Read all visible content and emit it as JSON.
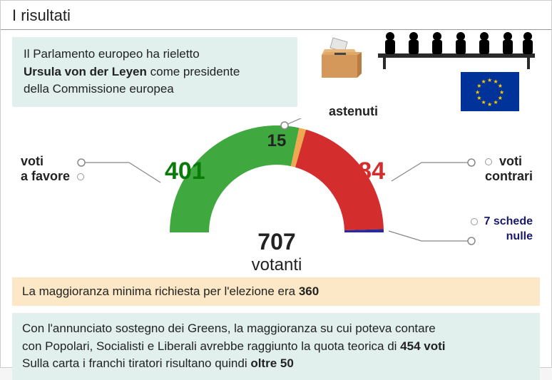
{
  "title": "I risultati",
  "intro": {
    "line1": "Il Parlamento europeo ha rieletto",
    "bold": "Ursula von der Leyen",
    "line2_after": " come presidente",
    "line3": "della Commissione europea"
  },
  "icons": {
    "ballot_box_fill": "#d4985a",
    "ballot_box_shadow": "#b87d42",
    "ballot_slot": "#555",
    "ballot_paper": "#e6e6e6",
    "silhouette_fill": "#000000",
    "table_fill": "#2a2a2a"
  },
  "eu_flag": {
    "bg": "#003399",
    "star_color": "#ffcc00",
    "star_count": 12
  },
  "chart": {
    "type": "half-donut",
    "total_label_number": "707",
    "total_label_word": "votanti",
    "inner_radius": 95,
    "outer_radius": 150,
    "segments": [
      {
        "key": "favor",
        "label_line1": "voti",
        "label_line2": "a favore",
        "value": 401,
        "value_text": "401",
        "color": "#3fa83f"
      },
      {
        "key": "abstain",
        "label_line1": "astenuti",
        "label_line2": "",
        "value": 15,
        "value_text": "15",
        "color": "#f0a850"
      },
      {
        "key": "against",
        "label_line1": "voti",
        "label_line2": "contrari",
        "value": 284,
        "value_text": "284",
        "color": "#d32d2d"
      },
      {
        "key": "null",
        "label_line1": "7 schede",
        "label_line2": "nulle",
        "value": 7,
        "value_text": "7",
        "color": "#2a2a9a"
      }
    ],
    "center_text_color": "#222222",
    "value_font_size_main": 34,
    "value_font_size_abstain": 24,
    "label_font_size": 18,
    "background": "#ffffff"
  },
  "majority": {
    "prefix": "La maggioranza minima richiesta per l'elezione era ",
    "value": "360",
    "bg": "#fce8c6"
  },
  "greens": {
    "line1_prefix": "Con l'annunciato sostegno dei Greens, la maggioranza su cui poteva contare",
    "line2_prefix": "con Popolari, Socialisti e Liberali avrebbe raggiunto la quota teorica di ",
    "line2_bold": "454 voti",
    "line3_prefix": "Sulla carta i franchi tiratori risultano quindi ",
    "line3_bold": "oltre 50",
    "bg": "#e1f0ed"
  }
}
